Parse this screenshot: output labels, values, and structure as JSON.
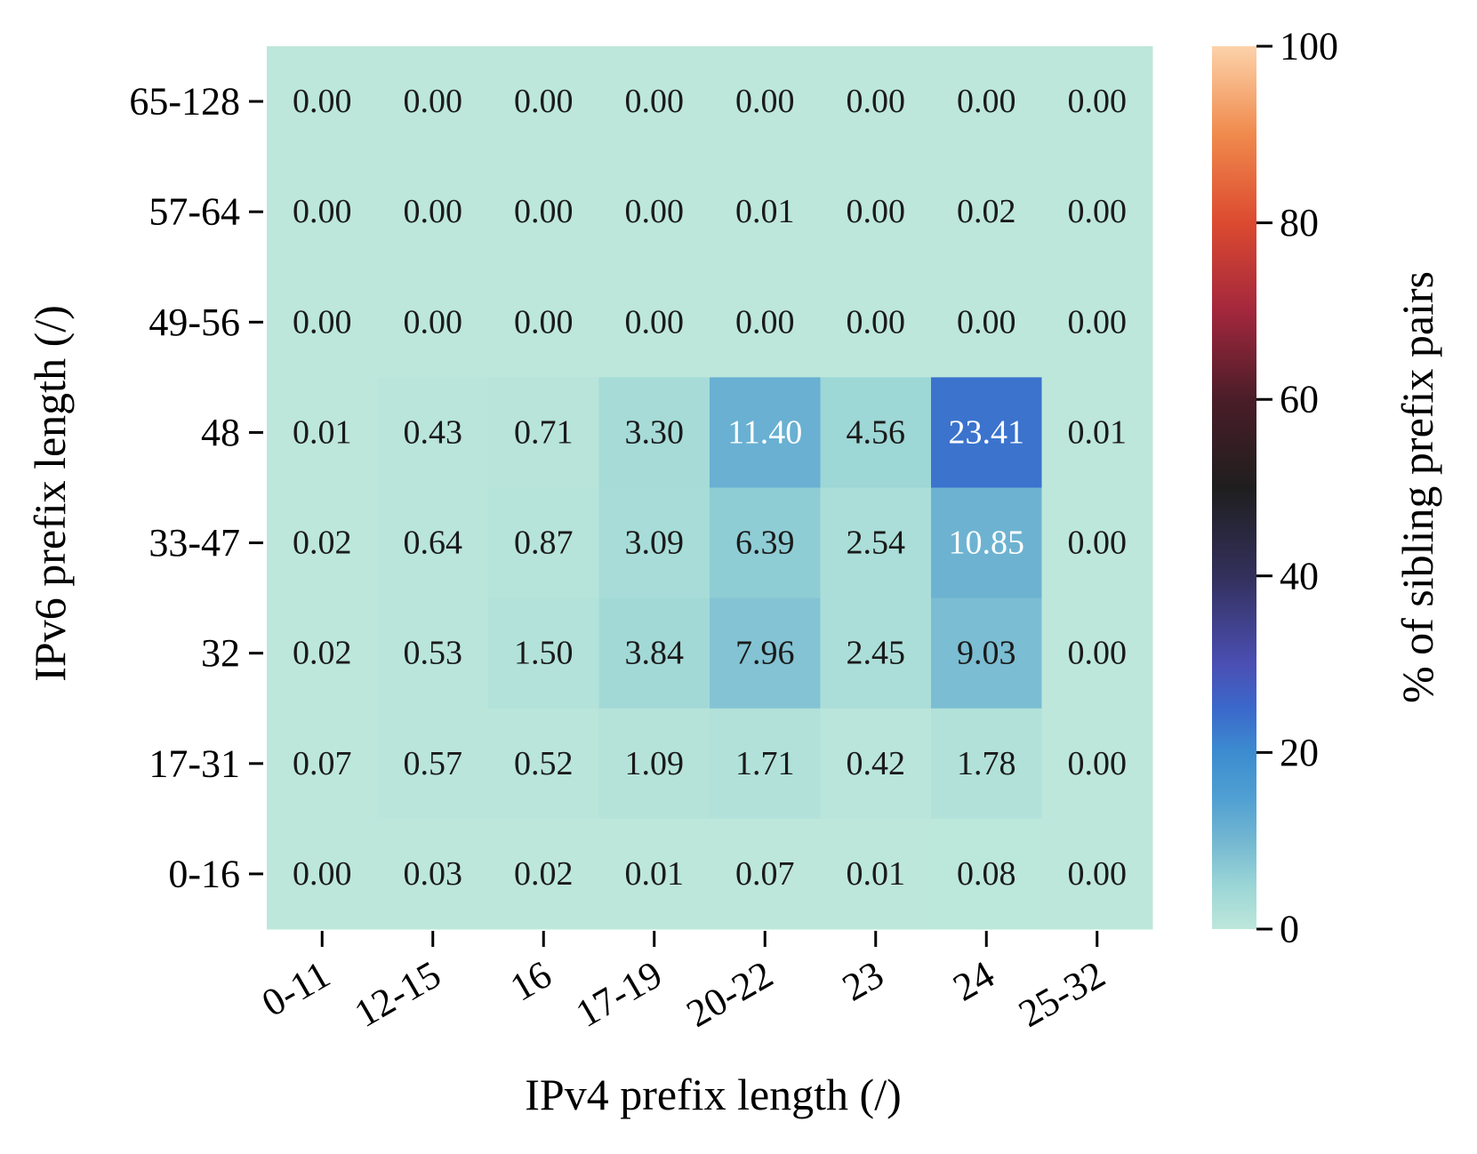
{
  "chart_data": {
    "type": "heatmap",
    "title": "",
    "xlabel": "IPv4 prefix length (/)",
    "ylabel": "IPv6 prefix length (/)",
    "x_categories": [
      "0-11",
      "12-15",
      "16",
      "17-19",
      "20-22",
      "23",
      "24",
      "25-32"
    ],
    "y_categories": [
      "65-128",
      "57-64",
      "49-56",
      "48",
      "33-47",
      "32",
      "17-31",
      "0-16"
    ],
    "values": [
      [
        0.0,
        0.0,
        0.0,
        0.0,
        0.0,
        0.0,
        0.0,
        0.0
      ],
      [
        0.0,
        0.0,
        0.0,
        0.0,
        0.01,
        0.0,
        0.02,
        0.0
      ],
      [
        0.0,
        0.0,
        0.0,
        0.0,
        0.0,
        0.0,
        0.0,
        0.0
      ],
      [
        0.01,
        0.43,
        0.71,
        3.3,
        11.4,
        4.56,
        23.41,
        0.01
      ],
      [
        0.02,
        0.64,
        0.87,
        3.09,
        6.39,
        2.54,
        10.85,
        0.0
      ],
      [
        0.02,
        0.53,
        1.5,
        3.84,
        7.96,
        2.45,
        9.03,
        0.0
      ],
      [
        0.07,
        0.57,
        0.52,
        1.09,
        1.71,
        0.42,
        1.78,
        0.0
      ],
      [
        0.0,
        0.03,
        0.02,
        0.01,
        0.07,
        0.01,
        0.08,
        0.0
      ]
    ],
    "cell_labels": [
      [
        "0.00",
        "0.00",
        "0.00",
        "0.00",
        "0.00",
        "0.00",
        "0.00",
        "0.00"
      ],
      [
        "0.00",
        "0.00",
        "0.00",
        "0.00",
        "0.01",
        "0.00",
        "0.02",
        "0.00"
      ],
      [
        "0.00",
        "0.00",
        "0.00",
        "0.00",
        "0.00",
        "0.00",
        "0.00",
        "0.00"
      ],
      [
        "0.01",
        "0.43",
        "0.71",
        "3.30",
        "11.40",
        "4.56",
        "23.41",
        "0.01"
      ],
      [
        "0.02",
        "0.64",
        "0.87",
        "3.09",
        "6.39",
        "2.54",
        "10.85",
        "0.00"
      ],
      [
        "0.02",
        "0.53",
        "1.50",
        "3.84",
        "7.96",
        "2.45",
        "9.03",
        "0.00"
      ],
      [
        "0.07",
        "0.57",
        "0.52",
        "1.09",
        "1.71",
        "0.42",
        "1.78",
        "0.00"
      ],
      [
        "0.00",
        "0.03",
        "0.02",
        "0.01",
        "0.07",
        "0.01",
        "0.08",
        "0.00"
      ]
    ],
    "colorbar": {
      "label": "% of sibling prefix pairs",
      "range": [
        0,
        100
      ],
      "ticks": [
        0,
        20,
        40,
        60,
        80,
        100
      ],
      "tick_labels": [
        "0",
        "20",
        "40",
        "60",
        "80",
        "100"
      ],
      "colormap": "icefire",
      "colormap_stops": [
        {
          "v": 0,
          "c": "#bde7db"
        },
        {
          "v": 5,
          "c": "#9ad5d6"
        },
        {
          "v": 10,
          "c": "#73b7d1"
        },
        {
          "v": 15,
          "c": "#4f9fd3"
        },
        {
          "v": 20,
          "c": "#3c8cd0"
        },
        {
          "v": 25,
          "c": "#3b68cb"
        },
        {
          "v": 30,
          "c": "#4b4fb3"
        },
        {
          "v": 40,
          "c": "#33305c"
        },
        {
          "v": 50,
          "c": "#1f1e1e"
        },
        {
          "v": 60,
          "c": "#4a1d28"
        },
        {
          "v": 70,
          "c": "#a3273d"
        },
        {
          "v": 80,
          "c": "#dc4a30"
        },
        {
          "v": 90,
          "c": "#f08a4c"
        },
        {
          "v": 100,
          "c": "#fcd2aa"
        }
      ]
    },
    "light_text_threshold": 10,
    "grid": false,
    "legend": "colorbar-right"
  }
}
